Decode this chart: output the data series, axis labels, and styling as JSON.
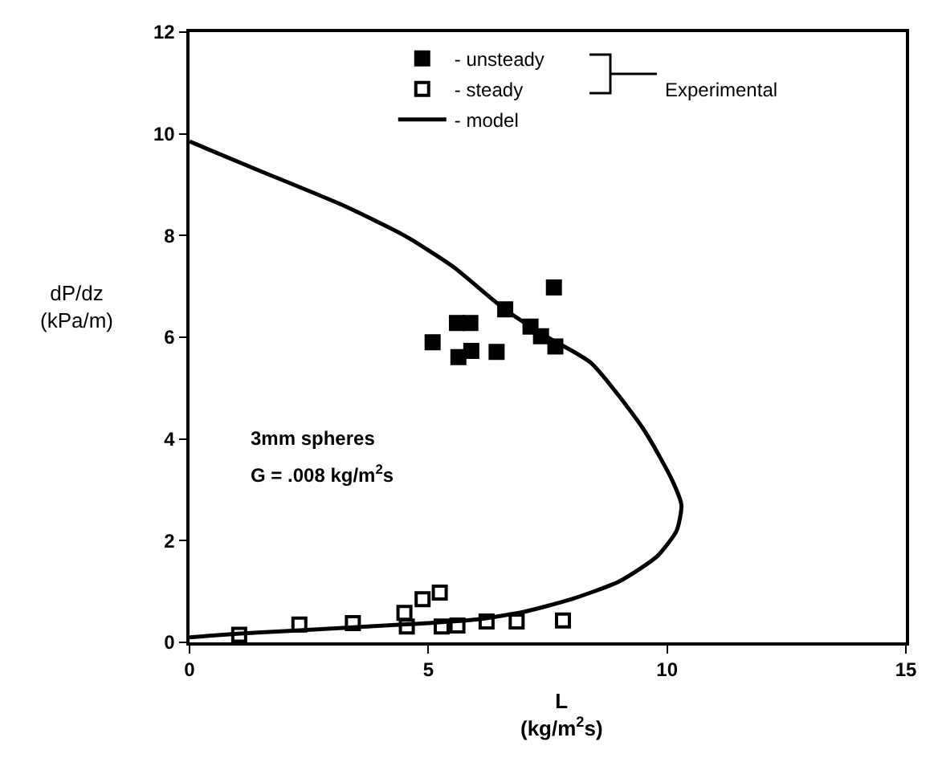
{
  "chart_data": {
    "type": "scatter",
    "xlabel": "L\n(kg/m$^{2}$s)",
    "ylabel": "dP/dz\n(kPa/m)",
    "xlim": [
      0,
      15
    ],
    "ylim": [
      0,
      12
    ],
    "xticks": [
      0,
      5,
      10,
      15
    ],
    "yticks": [
      0,
      2,
      4,
      6,
      8,
      10,
      12
    ],
    "grid": false,
    "legend": "top",
    "annotations": [
      "Experimental",
      "3mm spheres",
      "G = .008 kg/m$^{2}$s"
    ],
    "series": [
      {
        "name": "- unsteady",
        "color": "#000000",
        "marker": "square",
        "x": [
          7.63,
          6.61,
          5.6,
          5.88,
          5.09,
          7.14,
          7.36,
          7.66,
          5.63,
          5.9,
          6.43
        ],
        "values": [
          6.98,
          6.55,
          6.28,
          6.28,
          5.9,
          6.21,
          6.02,
          5.82,
          5.61,
          5.73,
          5.71
        ]
      },
      {
        "name": "- steady",
        "color": "#000000",
        "marker": "square-open",
        "x": [
          1.04,
          2.3,
          3.42,
          4.5,
          4.55,
          4.88,
          5.24,
          5.28,
          5.61,
          6.22,
          6.85,
          7.82
        ],
        "values": [
          0.15,
          0.35,
          0.38,
          0.58,
          0.31,
          0.85,
          0.98,
          0.31,
          0.33,
          0.41,
          0.41,
          0.43
        ]
      },
      {
        "name": "- model",
        "type": "line",
        "color": "#000000",
        "marker": "none",
        "line_style": "solid",
        "x": [
          0,
          1.4,
          3.2,
          4.5,
          5.5,
          6.6,
          7.5,
          8.4,
          9.5,
          10.1,
          10.3,
          10.2,
          9.8,
          9.0,
          8.0,
          7.0,
          6.0,
          5.0,
          3.5,
          2.0,
          1.0,
          0
        ],
        "values": [
          9.85,
          9.3,
          8.6,
          8.0,
          7.4,
          6.55,
          6.0,
          5.5,
          4.2,
          3.2,
          2.7,
          2.2,
          1.7,
          1.2,
          0.85,
          0.6,
          0.45,
          0.38,
          0.3,
          0.22,
          0.17,
          0.1
        ]
      }
    ]
  }
}
